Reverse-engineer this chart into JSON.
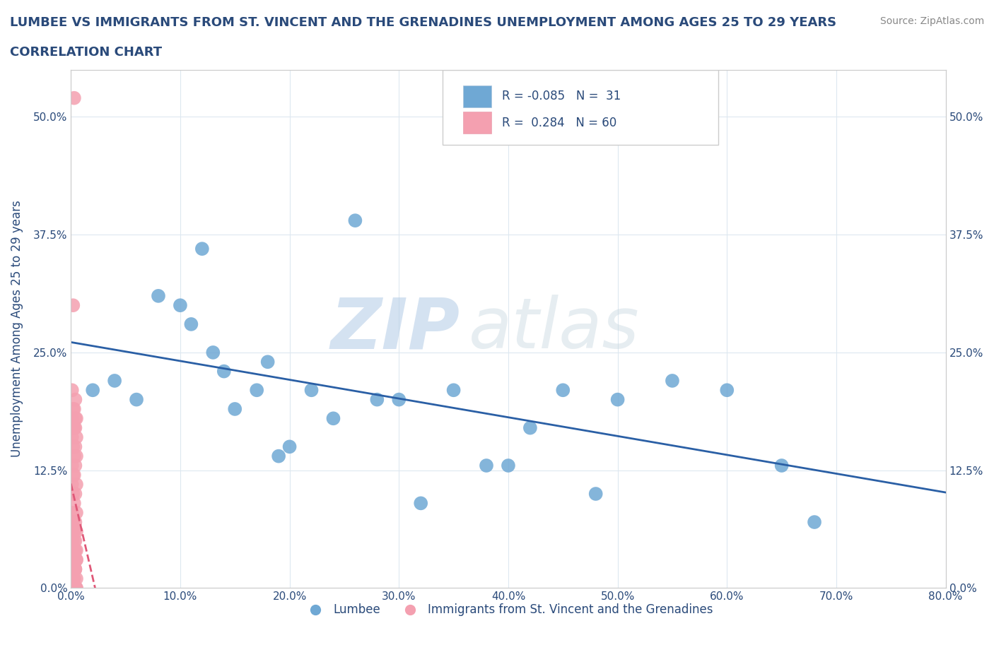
{
  "title_line1": "LUMBEE VS IMMIGRANTS FROM ST. VINCENT AND THE GRENADINES UNEMPLOYMENT AMONG AGES 25 TO 29 YEARS",
  "title_line2": "CORRELATION CHART",
  "source_text": "Source: ZipAtlas.com",
  "ylabel": "Unemployment Among Ages 25 to 29 years",
  "xlim": [
    0.0,
    0.8
  ],
  "ylim": [
    0.0,
    0.55
  ],
  "xticks": [
    0.0,
    0.1,
    0.2,
    0.3,
    0.4,
    0.5,
    0.6,
    0.7,
    0.8
  ],
  "yticks": [
    0.0,
    0.125,
    0.25,
    0.375,
    0.5
  ],
  "blue_color": "#6fa8d4",
  "pink_color": "#f4a0b0",
  "blue_line_color": "#2a5fa5",
  "pink_line_color": "#e05878",
  "watermark_zip": "ZIP",
  "watermark_atlas": "atlas",
  "legend_blue_label": "Lumbee",
  "legend_pink_label": "Immigrants from St. Vincent and the Grenadines",
  "blue_R": -0.085,
  "blue_N": 31,
  "pink_R": 0.284,
  "pink_N": 60,
  "lumbee_x": [
    0.02,
    0.04,
    0.06,
    0.08,
    0.1,
    0.11,
    0.12,
    0.13,
    0.14,
    0.15,
    0.17,
    0.18,
    0.19,
    0.2,
    0.22,
    0.24,
    0.26,
    0.28,
    0.3,
    0.32,
    0.35,
    0.38,
    0.4,
    0.42,
    0.45,
    0.48,
    0.5,
    0.55,
    0.6,
    0.65,
    0.68
  ],
  "lumbee_y": [
    0.21,
    0.22,
    0.2,
    0.31,
    0.3,
    0.28,
    0.36,
    0.25,
    0.23,
    0.19,
    0.21,
    0.24,
    0.14,
    0.15,
    0.21,
    0.18,
    0.39,
    0.2,
    0.2,
    0.09,
    0.21,
    0.13,
    0.13,
    0.17,
    0.21,
    0.1,
    0.2,
    0.22,
    0.21,
    0.13,
    0.07
  ],
  "svg_x": [
    0.003,
    0.002,
    0.004,
    0.001,
    0.005,
    0.003,
    0.002,
    0.004,
    0.001,
    0.005,
    0.003,
    0.002,
    0.004,
    0.001,
    0.005,
    0.003,
    0.002,
    0.004,
    0.001,
    0.005,
    0.003,
    0.002,
    0.004,
    0.001,
    0.005,
    0.003,
    0.002,
    0.004,
    0.001,
    0.005,
    0.003,
    0.002,
    0.004,
    0.001,
    0.005,
    0.003,
    0.002,
    0.004,
    0.001,
    0.005,
    0.003,
    0.002,
    0.004,
    0.001,
    0.005,
    0.003,
    0.002,
    0.004,
    0.001,
    0.005,
    0.003,
    0.002,
    0.004,
    0.001,
    0.005,
    0.003,
    0.002,
    0.004,
    0.001,
    0.005
  ],
  "svg_y": [
    0.52,
    0.3,
    0.18,
    0.02,
    0.04,
    0.05,
    0.06,
    0.0,
    0.01,
    0.01,
    0.02,
    0.02,
    0.02,
    0.03,
    0.03,
    0.04,
    0.04,
    0.05,
    0.05,
    0.06,
    0.06,
    0.07,
    0.07,
    0.08,
    0.08,
    0.09,
    0.1,
    0.1,
    0.11,
    0.11,
    0.12,
    0.12,
    0.13,
    0.13,
    0.14,
    0.14,
    0.15,
    0.15,
    0.16,
    0.16,
    0.17,
    0.17,
    0.17,
    0.18,
    0.18,
    0.19,
    0.19,
    0.2,
    0.21,
    0.0,
    0.01,
    0.01,
    0.02,
    0.02,
    0.03,
    0.03,
    0.04,
    0.04,
    0.07,
    0.0
  ],
  "background_color": "#ffffff",
  "grid_color": "#dde8f0",
  "title_color": "#2a4a7a",
  "tick_color": "#2a4a7a",
  "axis_color": "#cccccc"
}
